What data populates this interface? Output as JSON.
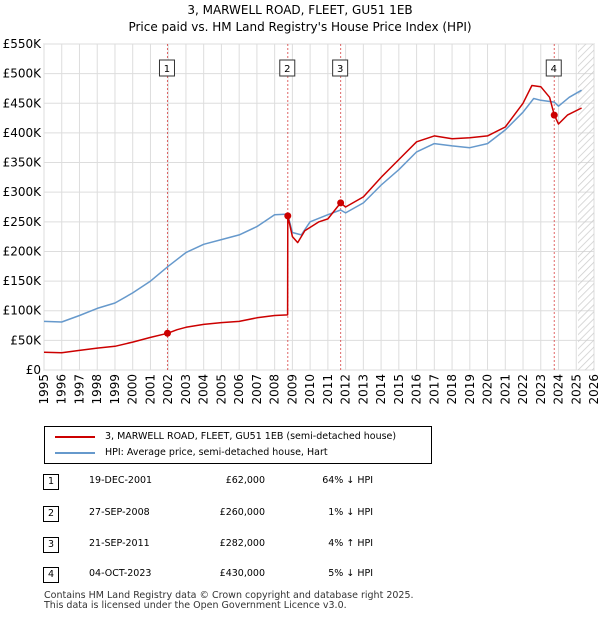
{
  "chart_data": {
    "type": "line",
    "title": "3, MARWELL ROAD, FLEET, GU51 1EB",
    "subtitle": "Price paid vs. HM Land Registry's House Price Index (HPI)",
    "xlim": [
      1995,
      2026
    ],
    "ylim": [
      0,
      550000
    ],
    "x_ticks": [
      "1995",
      "1996",
      "1997",
      "1998",
      "1999",
      "2000",
      "2001",
      "2002",
      "2003",
      "2004",
      "2005",
      "2006",
      "2007",
      "2008",
      "2009",
      "2010",
      "2011",
      "2012",
      "2013",
      "2014",
      "2015",
      "2016",
      "2017",
      "2018",
      "2019",
      "2020",
      "2021",
      "2022",
      "2023",
      "2024",
      "2025",
      "2026"
    ],
    "y_ticks": [
      {
        "value": 0,
        "label": "£0"
      },
      {
        "value": 50000,
        "label": "£50K"
      },
      {
        "value": 100000,
        "label": "£100K"
      },
      {
        "value": 150000,
        "label": "£150K"
      },
      {
        "value": 200000,
        "label": "£200K"
      },
      {
        "value": 250000,
        "label": "£250K"
      },
      {
        "value": 300000,
        "label": "£300K"
      },
      {
        "value": 350000,
        "label": "£350K"
      },
      {
        "value": 400000,
        "label": "£400K"
      },
      {
        "value": 450000,
        "label": "£450K"
      },
      {
        "value": 500000,
        "label": "£500K"
      },
      {
        "value": 550000,
        "label": "£550K"
      }
    ],
    "grid": true,
    "future_hatch_from": 2025.1,
    "series": [
      {
        "name": "3, MARWELL ROAD, FLEET, GU51 1EB (semi-detached house)",
        "color": "#cc0000",
        "points": [
          [
            1995.0,
            30000
          ],
          [
            1996.0,
            29000
          ],
          [
            1997.0,
            33000
          ],
          [
            1998.0,
            37000
          ],
          [
            1999.0,
            40000
          ],
          [
            2000.0,
            47000
          ],
          [
            2001.0,
            55000
          ],
          [
            2001.96,
            62000
          ],
          [
            2002.5,
            68000
          ],
          [
            2003.0,
            72000
          ],
          [
            2004.0,
            77000
          ],
          [
            2005.0,
            80000
          ],
          [
            2006.0,
            82000
          ],
          [
            2007.0,
            88000
          ],
          [
            2008.0,
            92000
          ],
          [
            2008.73,
            93000
          ],
          [
            2008.74,
            260000
          ],
          [
            2009.0,
            225000
          ],
          [
            2009.3,
            215000
          ],
          [
            2009.7,
            235000
          ],
          [
            2010.5,
            250000
          ],
          [
            2011.0,
            255000
          ],
          [
            2011.72,
            282000
          ],
          [
            2012.0,
            275000
          ],
          [
            2013.0,
            292000
          ],
          [
            2014.0,
            325000
          ],
          [
            2015.0,
            355000
          ],
          [
            2016.0,
            385000
          ],
          [
            2017.0,
            395000
          ],
          [
            2018.0,
            390000
          ],
          [
            2019.0,
            392000
          ],
          [
            2020.0,
            395000
          ],
          [
            2021.0,
            410000
          ],
          [
            2022.0,
            450000
          ],
          [
            2022.5,
            480000
          ],
          [
            2023.0,
            478000
          ],
          [
            2023.5,
            460000
          ],
          [
            2023.76,
            430000
          ],
          [
            2024.0,
            415000
          ],
          [
            2024.5,
            430000
          ],
          [
            2025.3,
            442000
          ]
        ]
      },
      {
        "name": "HPI: Average price, semi-detached house, Hart",
        "color": "#6699cc",
        "points": [
          [
            1995.0,
            82000
          ],
          [
            1996.0,
            81000
          ],
          [
            1997.0,
            92000
          ],
          [
            1998.0,
            104000
          ],
          [
            1999.0,
            113000
          ],
          [
            2000.0,
            130000
          ],
          [
            2001.0,
            150000
          ],
          [
            2002.0,
            175000
          ],
          [
            2003.0,
            198000
          ],
          [
            2004.0,
            212000
          ],
          [
            2005.0,
            220000
          ],
          [
            2006.0,
            228000
          ],
          [
            2007.0,
            242000
          ],
          [
            2008.0,
            262000
          ],
          [
            2008.73,
            263000
          ],
          [
            2009.0,
            232000
          ],
          [
            2009.5,
            228000
          ],
          [
            2010.0,
            250000
          ],
          [
            2011.0,
            262000
          ],
          [
            2011.72,
            270000
          ],
          [
            2012.0,
            265000
          ],
          [
            2013.0,
            282000
          ],
          [
            2014.0,
            312000
          ],
          [
            2015.0,
            338000
          ],
          [
            2016.0,
            368000
          ],
          [
            2017.0,
            382000
          ],
          [
            2018.0,
            378000
          ],
          [
            2019.0,
            375000
          ],
          [
            2020.0,
            382000
          ],
          [
            2021.0,
            405000
          ],
          [
            2022.0,
            435000
          ],
          [
            2022.6,
            458000
          ],
          [
            2023.0,
            455000
          ],
          [
            2023.76,
            452000
          ],
          [
            2024.0,
            445000
          ],
          [
            2024.6,
            460000
          ],
          [
            2025.3,
            472000
          ]
        ]
      }
    ],
    "sales": [
      {
        "num": "1",
        "x": 2001.96,
        "value": 62000,
        "date": "19-DEC-2001",
        "price": "£62,000",
        "hpi": "64% ↓ HPI"
      },
      {
        "num": "2",
        "x": 2008.74,
        "value": 260000,
        "date": "27-SEP-2008",
        "price": "£260,000",
        "hpi": "1% ↓ HPI"
      },
      {
        "num": "3",
        "x": 2011.72,
        "value": 282000,
        "date": "21-SEP-2011",
        "price": "£282,000",
        "hpi": "4% ↑ HPI"
      },
      {
        "num": "4",
        "x": 2023.76,
        "value": 430000,
        "date": "04-OCT-2023",
        "price": "£430,000",
        "hpi": "5% ↓ HPI"
      }
    ]
  },
  "legend": {
    "property_label": "3, MARWELL ROAD, FLEET, GU51 1EB (semi-detached house)",
    "hpi_label": "HPI: Average price, semi-detached house, Hart",
    "property_color": "#cc0000",
    "hpi_color": "#6699cc"
  },
  "footer": {
    "line1": "Contains HM Land Registry data © Crown copyright and database right 2025.",
    "line2": "This data is licensed under the Open Government Licence v3.0."
  }
}
